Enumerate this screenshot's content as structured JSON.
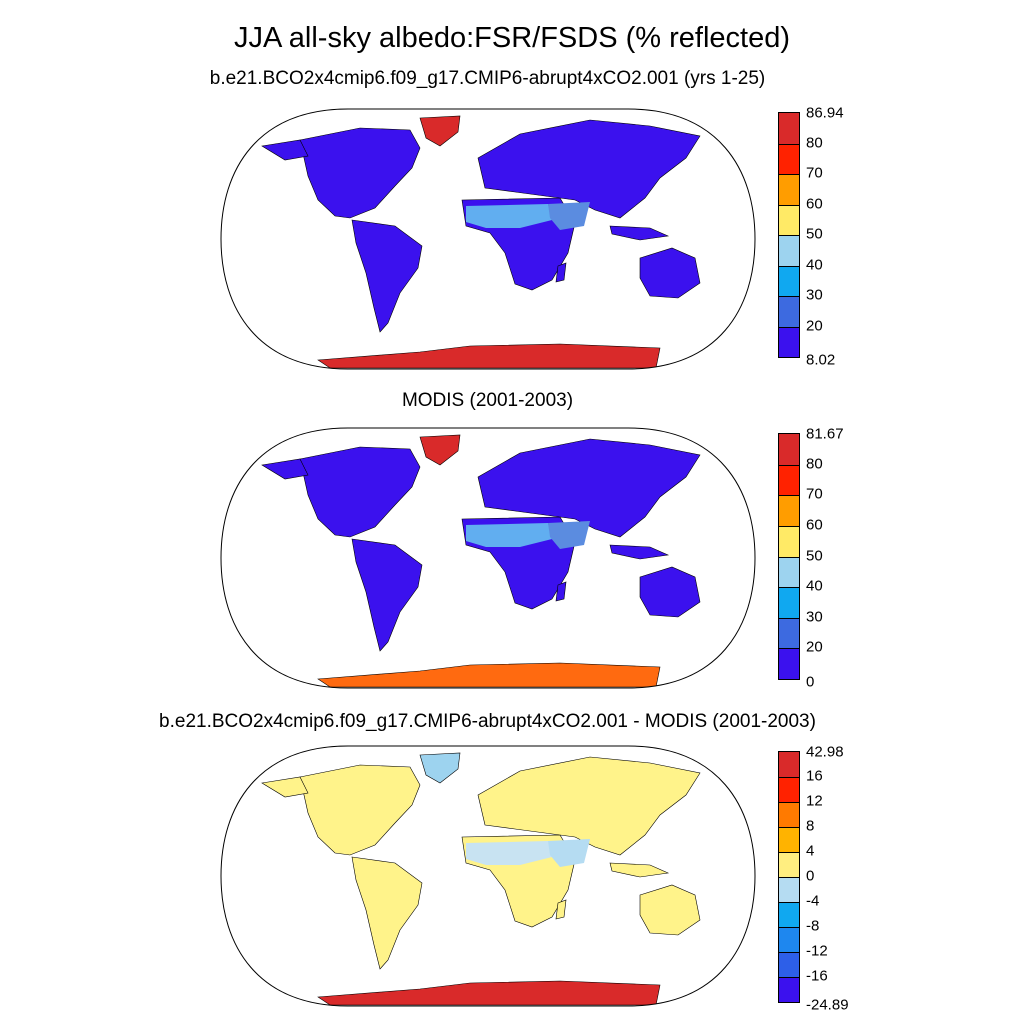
{
  "figure": {
    "title": "JJA all-sky albedo:FSR/FSDS (% reflected)"
  },
  "panels": [
    {
      "title": "b.e21.BCO2x4cmip6.f09_g17.CMIP6-abrupt4xCO2.001 (yrs 1-25)",
      "colorbar": {
        "labels": [
          "86.94",
          "80",
          "70",
          "60",
          "50",
          "40",
          "30",
          "20",
          "8.02"
        ],
        "colors": [
          "#d92a2a",
          "#ff2200",
          "#ff9d00",
          "#ffea66",
          "#9dd3ef",
          "#10a8f0",
          "#3d6ae0",
          "#3b11ee"
        ]
      },
      "regions": {
        "land": "#3b11ee",
        "sahara": "#61aef0",
        "arabia": "#5b8ce0",
        "greenland": "#d92a2a",
        "antarctica": "#d92a2a"
      }
    },
    {
      "title": "MODIS (2001-2003)",
      "colorbar": {
        "labels": [
          "81.67",
          "80",
          "70",
          "60",
          "50",
          "40",
          "30",
          "20",
          "0"
        ],
        "colors": [
          "#d92a2a",
          "#ff2200",
          "#ff9d00",
          "#ffea66",
          "#9dd3ef",
          "#10a8f0",
          "#3d6ae0",
          "#3b11ee"
        ]
      },
      "regions": {
        "land": "#3b11ee",
        "sahara": "#61aef0",
        "arabia": "#5b8ce0",
        "greenland": "#d92a2a",
        "antarctica": "#ff6a10"
      }
    },
    {
      "title": "b.e21.BCO2x4cmip6.f09_g17.CMIP6-abrupt4xCO2.001 - MODIS (2001-2003)",
      "colorbar": {
        "labels": [
          "42.98",
          "16",
          "12",
          "8",
          "4",
          "0",
          "-4",
          "-8",
          "-12",
          "-16",
          "-24.89"
        ],
        "colors": [
          "#d92a2a",
          "#ff2200",
          "#ff7a00",
          "#ffb300",
          "#ffee80",
          "#b5dcf2",
          "#10a8f0",
          "#1e87ef",
          "#2d5fe8",
          "#3b11ee"
        ]
      },
      "regions": {
        "land": "#fff38a",
        "sahara": "#c8e3f2",
        "arabia": "#b5dcf2",
        "greenland": "#9dd3ef",
        "antarctica": "#d92a2a"
      }
    }
  ]
}
